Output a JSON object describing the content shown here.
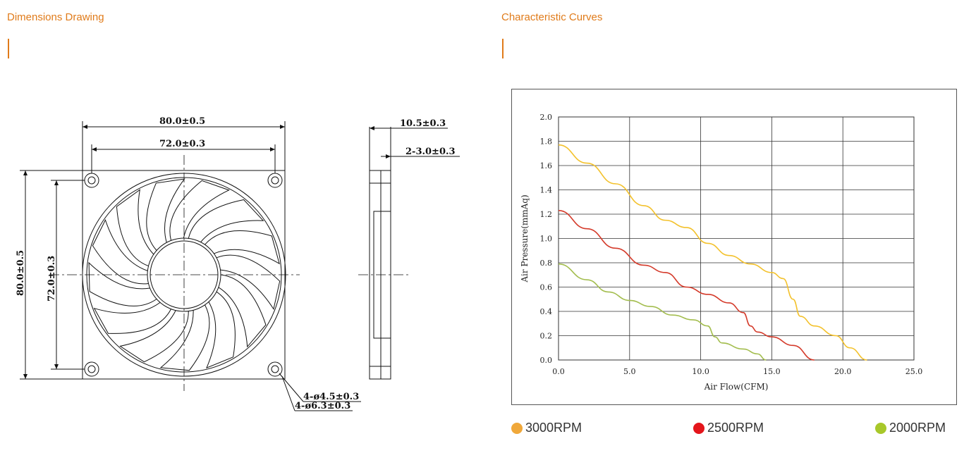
{
  "sections": {
    "left_title": "Dimensions Drawing",
    "right_title": "Characteristic Curves"
  },
  "colors": {
    "accent": "#e07b1a"
  },
  "drawing": {
    "dim_width_outer": "80.0±0.5",
    "dim_width_hole": "72.0±0.3",
    "dim_height_outer": "80.0±0.5",
    "dim_height_hole": "72.0±0.3",
    "dim_thickness": "10.5±0.3",
    "dim_flange": "2-3.0±0.3",
    "dim_hole_small": "4-ø4.5±0.3",
    "dim_hole_large": "4-ø6.3±0.3"
  },
  "chart_data": {
    "type": "line",
    "xlabel": "Air Flow(CFM)",
    "ylabel": "Air Pressure(mmAq)",
    "xlim": [
      0,
      25
    ],
    "ylim": [
      0,
      2.0
    ],
    "xticks": [
      "0.0",
      "5.0",
      "10.0",
      "15.0",
      "20.0",
      "25.0"
    ],
    "yticks": [
      "0.0",
      "0.2",
      "0.4",
      "0.6",
      "0.8",
      "1.0",
      "1.2",
      "1.4",
      "1.6",
      "1.8",
      "2.0"
    ],
    "grid": true,
    "series": [
      {
        "name": "3000RPM",
        "color": "#f3c12b",
        "points": [
          [
            0,
            1.77
          ],
          [
            2,
            1.62
          ],
          [
            4,
            1.45
          ],
          [
            6,
            1.27
          ],
          [
            7.5,
            1.15
          ],
          [
            9,
            1.09
          ],
          [
            10.5,
            0.96
          ],
          [
            12,
            0.86
          ],
          [
            13.5,
            0.79
          ],
          [
            15,
            0.72
          ],
          [
            15.8,
            0.67
          ],
          [
            16.5,
            0.5
          ],
          [
            17,
            0.36
          ],
          [
            18,
            0.28
          ],
          [
            19.5,
            0.2
          ],
          [
            20.5,
            0.1
          ],
          [
            21.7,
            0.0
          ]
        ]
      },
      {
        "name": "2500RPM",
        "color": "#d43a2a",
        "points": [
          [
            0,
            1.23
          ],
          [
            2,
            1.08
          ],
          [
            4,
            0.92
          ],
          [
            6,
            0.78
          ],
          [
            7.5,
            0.72
          ],
          [
            9,
            0.6
          ],
          [
            10.5,
            0.54
          ],
          [
            12,
            0.47
          ],
          [
            13,
            0.39
          ],
          [
            13.5,
            0.28
          ],
          [
            14,
            0.23
          ],
          [
            15,
            0.19
          ],
          [
            16.5,
            0.12
          ],
          [
            18,
            0.0
          ]
        ]
      },
      {
        "name": "2000RPM",
        "color": "#a3bd4e",
        "points": [
          [
            0,
            0.79
          ],
          [
            2,
            0.66
          ],
          [
            3.5,
            0.56
          ],
          [
            5,
            0.49
          ],
          [
            6.5,
            0.44
          ],
          [
            8,
            0.37
          ],
          [
            9.5,
            0.33
          ],
          [
            10.5,
            0.28
          ],
          [
            11,
            0.19
          ],
          [
            11.5,
            0.14
          ],
          [
            13,
            0.09
          ],
          [
            14,
            0.05
          ],
          [
            14.6,
            0.0
          ]
        ]
      }
    ]
  },
  "legend": [
    {
      "label": "3000RPM",
      "color": "#f0a83a"
    },
    {
      "label": "2500RPM",
      "color": "#e4151b"
    },
    {
      "label": "2000RPM",
      "color": "#a8c82a"
    }
  ]
}
